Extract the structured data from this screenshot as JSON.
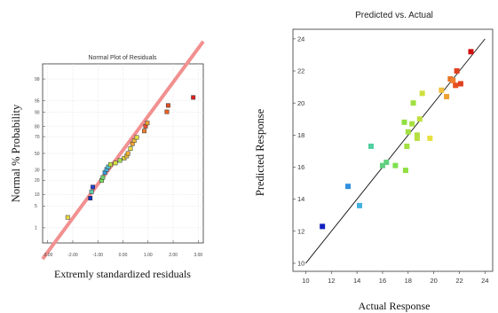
{
  "chart_data": [
    {
      "type": "scatter",
      "title": "Normal Plot of Residuals",
      "xlabel": "Extremly standardized residuals",
      "ylabel": "Normal % Probability",
      "xlim": [
        -3.2,
        3.2
      ],
      "x_ticks": [
        "-3.00",
        "-2.00",
        "-1.00",
        "0.00",
        "1.00",
        "2.00",
        "3.00"
      ],
      "x_tick_values": [
        -3,
        -2,
        -1,
        0,
        1,
        2,
        3
      ],
      "y_ticks": [
        "99",
        "95",
        "90",
        "80",
        "70",
        "50",
        "30",
        "20",
        "10",
        "5",
        "1"
      ],
      "y_tick_values": [
        99,
        95,
        90,
        80,
        70,
        50,
        30,
        20,
        10,
        5,
        1
      ],
      "fit_line": {
        "x": [
          -3.2,
          3.2
        ],
        "z": [
          -3.3,
          3.5
        ],
        "color": "#f29090"
      },
      "points": [
        {
          "x": -2.2,
          "z": -2.0,
          "color": "#e8d840"
        },
        {
          "x": -1.3,
          "z": -1.4,
          "color": "#1030c0"
        },
        {
          "x": -1.25,
          "z": -1.2,
          "color": "#60d0b0"
        },
        {
          "x": -1.2,
          "z": -1.05,
          "color": "#2040d0"
        },
        {
          "x": -0.85,
          "z": -0.85,
          "color": "#80e060"
        },
        {
          "x": -0.8,
          "z": -0.75,
          "color": "#70d070"
        },
        {
          "x": -0.72,
          "z": -0.6,
          "color": "#30a0e0"
        },
        {
          "x": -0.65,
          "z": -0.5,
          "color": "#40b0e0"
        },
        {
          "x": -0.58,
          "z": -0.42,
          "color": "#50c0d0"
        },
        {
          "x": -0.5,
          "z": -0.35,
          "color": "#c0e040"
        },
        {
          "x": -0.3,
          "z": -0.3,
          "color": "#d0e040"
        },
        {
          "x": -0.12,
          "z": -0.22,
          "color": "#a0e050"
        },
        {
          "x": 0.05,
          "z": -0.15,
          "color": "#e0d040"
        },
        {
          "x": 0.15,
          "z": -0.08,
          "color": "#f0c040"
        },
        {
          "x": 0.2,
          "z": 0.0,
          "color": "#f0b030"
        },
        {
          "x": 0.3,
          "z": 0.15,
          "color": "#e8e040"
        },
        {
          "x": 0.38,
          "z": 0.3,
          "color": "#f0a030"
        },
        {
          "x": 0.45,
          "z": 0.4,
          "color": "#f0c040"
        },
        {
          "x": 0.55,
          "z": 0.5,
          "color": "#e0e040"
        },
        {
          "x": 0.85,
          "z": 0.7,
          "color": "#f08030"
        },
        {
          "x": 0.9,
          "z": 0.85,
          "color": "#e85030"
        },
        {
          "x": 0.97,
          "z": 0.95,
          "color": "#e8a030"
        },
        {
          "x": 1.75,
          "z": 1.3,
          "color": "#f06020"
        },
        {
          "x": 1.8,
          "z": 1.5,
          "color": "#e05020"
        },
        {
          "x": 2.8,
          "z": 1.75,
          "color": "#e02020"
        }
      ]
    },
    {
      "type": "scatter",
      "title": "Predicted vs. Actual",
      "xlabel": "Actual Response",
      "ylabel": "Predicted Response",
      "xlim": [
        9,
        24.6
      ],
      "ylim": [
        9.5,
        24.6
      ],
      "x_ticks": [
        "10",
        "12",
        "14",
        "16",
        "18",
        "20",
        "22",
        "24"
      ],
      "y_ticks": [
        "10",
        "12",
        "14",
        "16",
        "18",
        "20",
        "22",
        "24"
      ],
      "fit_line": {
        "x": [
          10,
          24
        ],
        "y": [
          10,
          24
        ]
      },
      "points": [
        {
          "x": 11.3,
          "y": 12.3,
          "color": "#1020c0"
        },
        {
          "x": 13.3,
          "y": 14.8,
          "color": "#3090e0"
        },
        {
          "x": 14.2,
          "y": 13.6,
          "color": "#40b0e0"
        },
        {
          "x": 15.1,
          "y": 17.3,
          "color": "#50d0a0"
        },
        {
          "x": 16.0,
          "y": 16.1,
          "color": "#60d080"
        },
        {
          "x": 16.3,
          "y": 16.3,
          "color": "#60d080"
        },
        {
          "x": 17.0,
          "y": 16.1,
          "color": "#80e050"
        },
        {
          "x": 17.7,
          "y": 18.8,
          "color": "#90e040"
        },
        {
          "x": 17.8,
          "y": 15.8,
          "color": "#90e040"
        },
        {
          "x": 17.9,
          "y": 17.3,
          "color": "#a0e040"
        },
        {
          "x": 18.0,
          "y": 18.2,
          "color": "#a0e040"
        },
        {
          "x": 18.3,
          "y": 18.7,
          "color": "#a8e040"
        },
        {
          "x": 18.4,
          "y": 20.0,
          "color": "#a0e040"
        },
        {
          "x": 18.7,
          "y": 18.0,
          "color": "#b0e040"
        },
        {
          "x": 18.7,
          "y": 17.8,
          "color": "#b8e040"
        },
        {
          "x": 18.9,
          "y": 19.0,
          "color": "#c0e040"
        },
        {
          "x": 19.1,
          "y": 20.6,
          "color": "#d0e040"
        },
        {
          "x": 19.7,
          "y": 17.8,
          "color": "#e8e040"
        },
        {
          "x": 20.6,
          "y": 20.8,
          "color": "#f0c040"
        },
        {
          "x": 21.0,
          "y": 20.4,
          "color": "#f0a030"
        },
        {
          "x": 21.3,
          "y": 21.5,
          "color": "#e87020"
        },
        {
          "x": 21.5,
          "y": 21.4,
          "color": "#f08030"
        },
        {
          "x": 21.7,
          "y": 21.1,
          "color": "#e85020"
        },
        {
          "x": 21.8,
          "y": 22.0,
          "color": "#e04020"
        },
        {
          "x": 22.1,
          "y": 21.2,
          "color": "#e04020"
        },
        {
          "x": 22.9,
          "y": 23.2,
          "color": "#d01010"
        }
      ]
    }
  ]
}
